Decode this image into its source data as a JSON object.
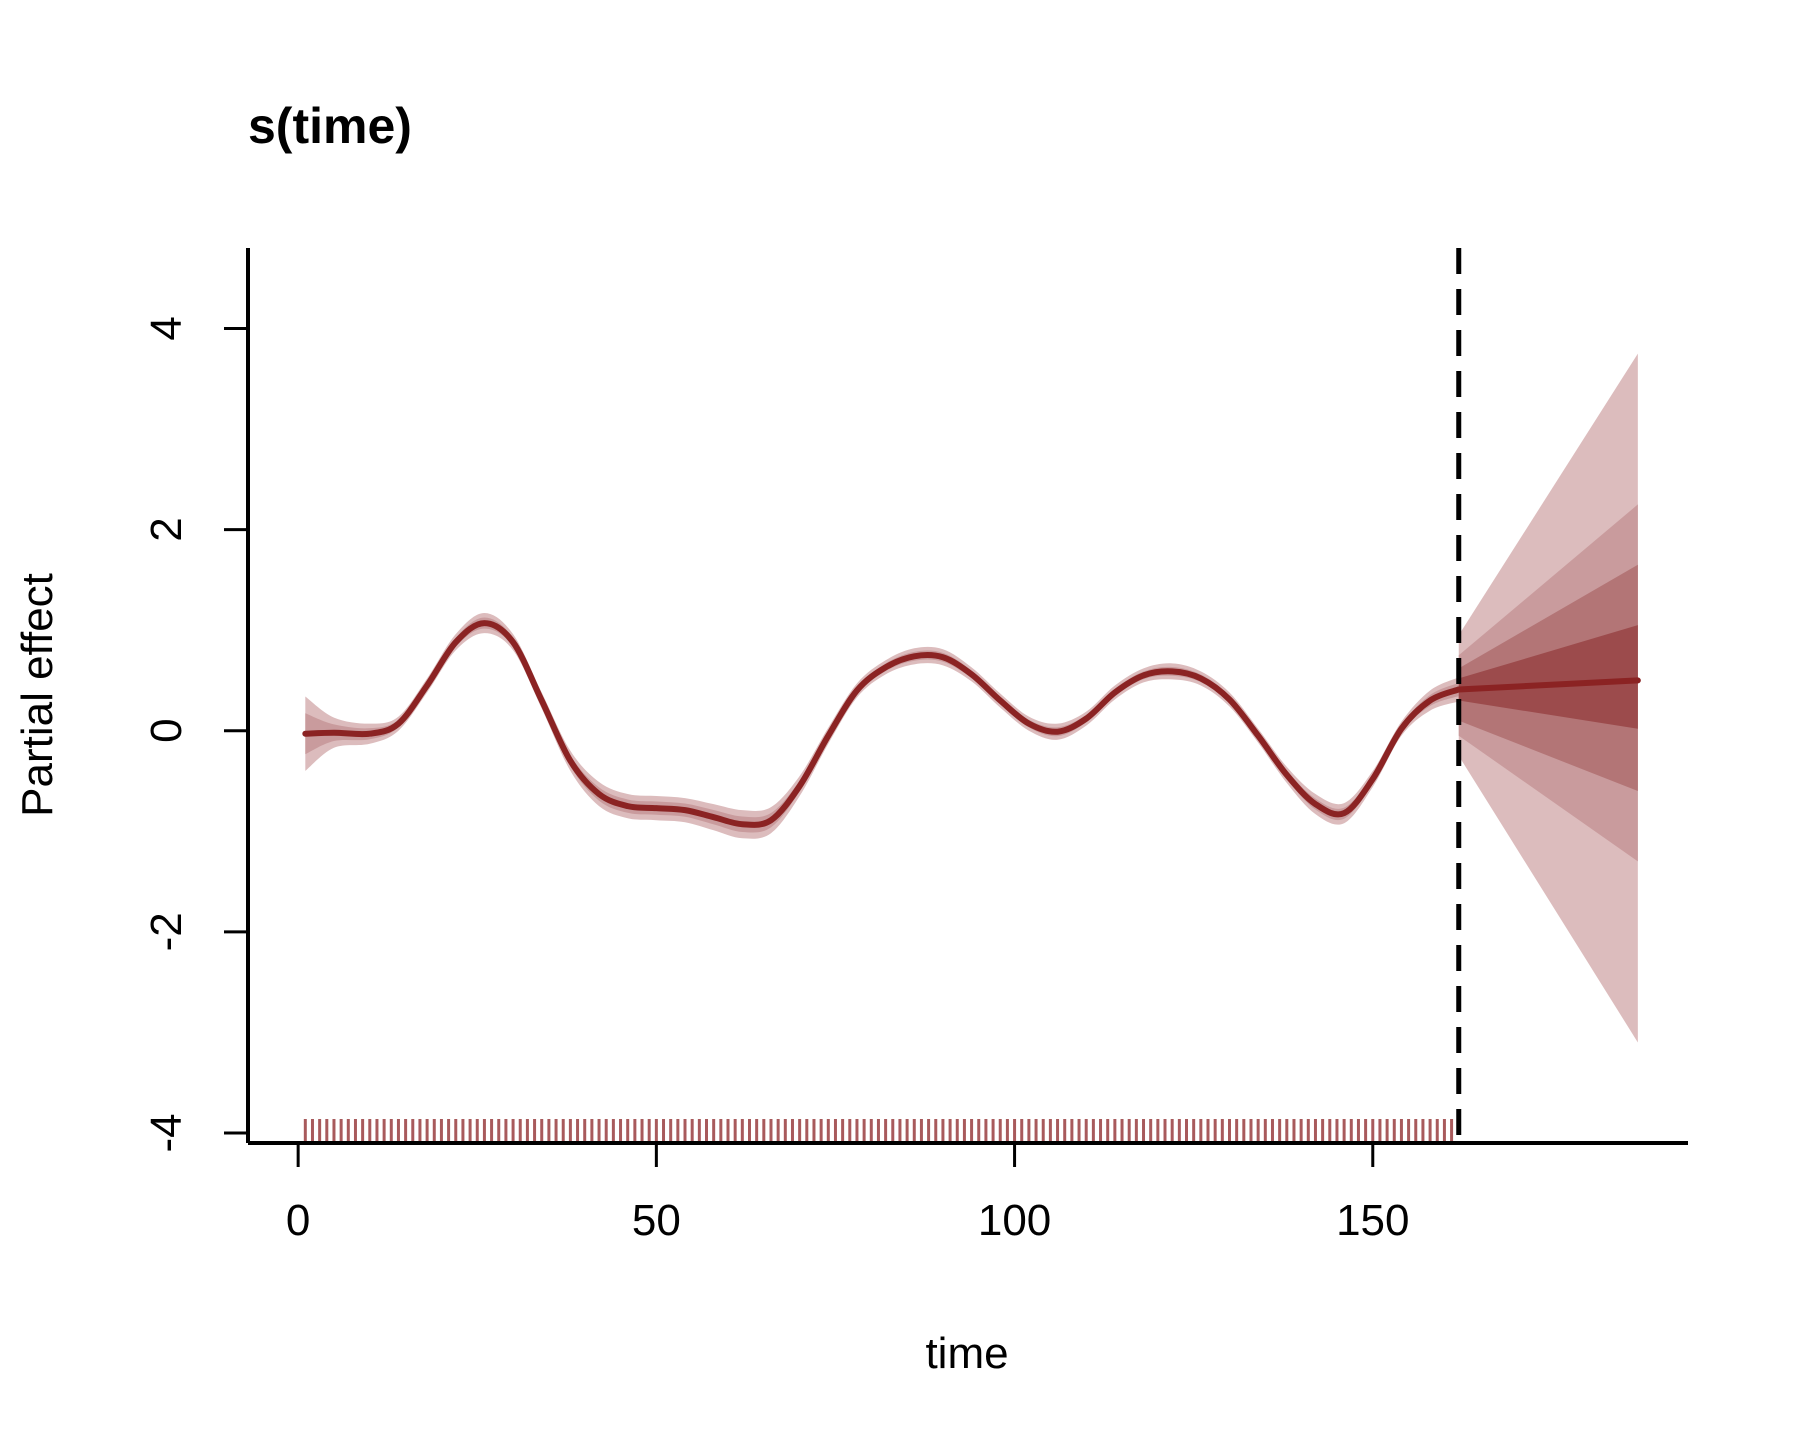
{
  "chart_data": {
    "type": "line",
    "title": "s(time)",
    "xlabel": "time",
    "ylabel": "Partial effect",
    "xlim": [
      -7,
      194
    ],
    "ylim": [
      -4.1,
      4.8
    ],
    "xticks": [
      0,
      50,
      100,
      150
    ],
    "yticks": [
      -4,
      -2,
      0,
      2,
      4
    ],
    "grid": false,
    "legend": "none",
    "forecast_start": 162,
    "rug_range": [
      1,
      161
    ],
    "colors": {
      "line": "#8b2323",
      "band_light": "#dcbcbd",
      "band_mid": "#c99b9d",
      "band_dark": "#b37576",
      "band_darkest": "#9c4b4c",
      "rug": "#a85a5c",
      "axis": "#000000"
    },
    "fit": {
      "x": [
        1,
        5,
        10,
        14,
        18,
        22,
        26,
        30,
        34,
        38,
        42,
        46,
        50,
        54,
        58,
        62,
        66,
        70,
        74,
        78,
        82,
        86,
        90,
        94,
        98,
        102,
        106,
        110,
        114,
        118,
        122,
        126,
        130,
        134,
        138,
        142,
        146,
        150,
        154,
        158,
        162
      ],
      "y": [
        -0.03,
        -0.02,
        -0.03,
        0.07,
        0.45,
        0.88,
        1.07,
        0.88,
        0.3,
        -0.3,
        -0.63,
        -0.75,
        -0.77,
        -0.79,
        -0.86,
        -0.93,
        -0.89,
        -0.55,
        -0.05,
        0.4,
        0.63,
        0.74,
        0.73,
        0.56,
        0.3,
        0.07,
        -0.01,
        0.12,
        0.38,
        0.55,
        0.59,
        0.52,
        0.31,
        -0.05,
        -0.44,
        -0.73,
        -0.82,
        -0.48,
        0.02,
        0.3,
        0.41
      ],
      "ci_halfwidth": [
        0.37,
        0.15,
        0.1,
        0.07,
        0.07,
        0.08,
        0.1,
        0.08,
        0.08,
        0.1,
        0.12,
        0.12,
        0.12,
        0.12,
        0.13,
        0.14,
        0.13,
        0.1,
        0.08,
        0.07,
        0.07,
        0.08,
        0.08,
        0.07,
        0.07,
        0.07,
        0.08,
        0.07,
        0.07,
        0.07,
        0.08,
        0.07,
        0.07,
        0.07,
        0.08,
        0.1,
        0.1,
        0.08,
        0.07,
        0.1,
        0.12
      ]
    },
    "forecast": {
      "x": [
        162,
        187
      ],
      "median": [
        0.41,
        0.5
      ],
      "bands": [
        {
          "lower": [
            -0.25,
            -3.1
          ],
          "upper": [
            0.95,
            3.75
          ]
        },
        {
          "lower": [
            -0.05,
            -1.3
          ],
          "upper": [
            0.75,
            2.25
          ]
        },
        {
          "lower": [
            0.1,
            -0.6
          ],
          "upper": [
            0.62,
            1.65
          ]
        },
        {
          "lower": [
            0.3,
            0.02
          ],
          "upper": [
            0.52,
            1.05
          ]
        }
      ]
    }
  }
}
